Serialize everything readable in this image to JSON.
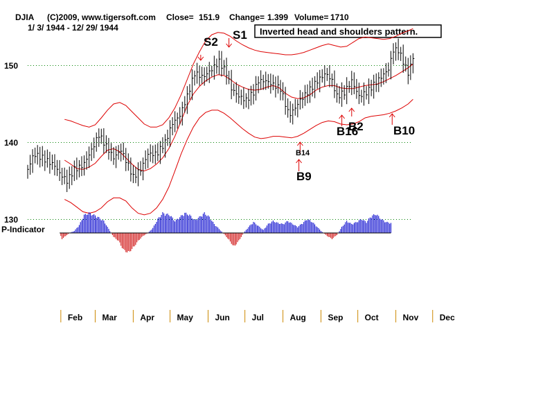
{
  "header": {
    "symbol": "DJIA",
    "copyright": "(C)2009, www.tigersoft.com",
    "close_label": "Close=",
    "close_value": "151.9",
    "change_label": "Change=",
    "change_value": "1.399",
    "volume_label": "Volume=",
    "volume_value": "1710",
    "date_range": "1/ 3/ 1944 - 12/ 29/ 1944"
  },
  "annotation": "Inverted head and shoulders pattern.",
  "indicator_label": "P-Indicator",
  "colors": {
    "price_bars": "#000000",
    "bands": "#dd0000",
    "signal_arrows": "#dd0000",
    "indicator_positive": "#0000cc",
    "indicator_negative": "#cc0000",
    "gridline": "#008000",
    "annotation_border": "#000000"
  },
  "chart_data": {
    "type": "line",
    "subtype": "ohlc-bars-with-bands-and-indicator",
    "title": "DJIA",
    "ylim": [
      127,
      157
    ],
    "yticks": [
      130,
      140,
      150
    ],
    "grid": "dotted horizontal lines at 130, 140 and 150",
    "x_day_range": [
      0,
      300
    ],
    "months": [
      "Feb",
      "Mar",
      "Apr",
      "May",
      "Jun",
      "Jul",
      "Aug",
      "Sep",
      "Oct",
      "Nov",
      "Dec"
    ],
    "month_start_day": [
      27,
      55,
      86,
      116,
      147,
      177,
      208,
      239,
      269,
      300,
      330
    ],
    "price_keypoints": [
      [
        0,
        136.5
      ],
      [
        5,
        138.5
      ],
      [
        12,
        138
      ],
      [
        22,
        137
      ],
      [
        26,
        136
      ],
      [
        32,
        135
      ],
      [
        38,
        136.5
      ],
      [
        45,
        137
      ],
      [
        52,
        139
      ],
      [
        58,
        141
      ],
      [
        64,
        139.5
      ],
      [
        70,
        138
      ],
      [
        76,
        139
      ],
      [
        82,
        137
      ],
      [
        86,
        135.5
      ],
      [
        92,
        136.5
      ],
      [
        98,
        138.5
      ],
      [
        105,
        138.5
      ],
      [
        112,
        140
      ],
      [
        118,
        142.5
      ],
      [
        124,
        143.5
      ],
      [
        130,
        146
      ],
      [
        136,
        149
      ],
      [
        143,
        148.5
      ],
      [
        150,
        149.5
      ],
      [
        156,
        150.5
      ],
      [
        162,
        149
      ],
      [
        166,
        147
      ],
      [
        172,
        146
      ],
      [
        178,
        145.5
      ],
      [
        184,
        146.5
      ],
      [
        188,
        148
      ],
      [
        194,
        148
      ],
      [
        200,
        147.5
      ],
      [
        206,
        147
      ],
      [
        210,
        145
      ],
      [
        213,
        143.5
      ],
      [
        218,
        144.5
      ],
      [
        222,
        145.5
      ],
      [
        228,
        146.5
      ],
      [
        236,
        148
      ],
      [
        243,
        149
      ],
      [
        248,
        148
      ],
      [
        252,
        146
      ],
      [
        258,
        146.5
      ],
      [
        264,
        148
      ],
      [
        270,
        146
      ],
      [
        276,
        146.5
      ],
      [
        282,
        147.5
      ],
      [
        288,
        148.5
      ],
      [
        294,
        149.5
      ],
      [
        298,
        152
      ],
      [
        302,
        152
      ],
      [
        306,
        150.5
      ],
      [
        310,
        149
      ],
      [
        314,
        151
      ]
    ],
    "series": [
      {
        "name": "Upper band",
        "x": [
          0,
          5,
          10,
          15,
          20,
          25,
          30,
          35,
          40,
          45,
          50,
          55,
          60,
          65,
          70,
          75,
          80,
          85,
          90,
          95,
          100,
          105,
          110,
          115,
          120,
          125,
          130,
          135,
          140,
          145,
          150,
          155,
          160,
          165,
          170,
          175,
          180,
          185,
          190,
          195,
          200,
          205,
          210,
          215,
          220,
          225,
          230,
          235,
          240,
          245,
          250,
          255,
          260,
          265,
          270,
          275,
          280,
          285,
          290,
          295,
          300,
          305,
          310,
          314
        ],
        "values": [
          null,
          null,
          null,
          null,
          null,
          null,
          143,
          142.8,
          142.5,
          142.2,
          142,
          142.3,
          143.2,
          144.2,
          145,
          145.2,
          144.8,
          144,
          143.2,
          142.4,
          142,
          142,
          142.3,
          143.2,
          144.5,
          146.2,
          148.2,
          150.2,
          151.8,
          153.2,
          154,
          154.3,
          154.2,
          153.8,
          153.2,
          152.7,
          152.3,
          152,
          151.8,
          151.7,
          151.6,
          151.5,
          151.4,
          151.4,
          151.5,
          151.7,
          152,
          152.3,
          152.6,
          152.8,
          152.6,
          152.4,
          152.5,
          153,
          153.5,
          153.7,
          153.6,
          153.5,
          153.4,
          153.5,
          153.8,
          154.2,
          154.5,
          154.8
        ]
      },
      {
        "name": "Moving average",
        "x": [
          0,
          5,
          10,
          15,
          20,
          25,
          30,
          35,
          40,
          45,
          50,
          55,
          60,
          65,
          70,
          75,
          80,
          85,
          90,
          95,
          100,
          105,
          110,
          115,
          120,
          125,
          130,
          135,
          140,
          145,
          150,
          155,
          160,
          165,
          170,
          175,
          180,
          185,
          190,
          195,
          200,
          205,
          210,
          215,
          220,
          225,
          230,
          235,
          240,
          245,
          250,
          255,
          260,
          265,
          270,
          275,
          280,
          285,
          290,
          295,
          300,
          305,
          310,
          314
        ],
        "values": [
          null,
          null,
          null,
          null,
          null,
          null,
          137.7,
          137.2,
          136.6,
          136.5,
          136.8,
          137.3,
          138.2,
          139,
          139.2,
          138.8,
          138,
          137.2,
          136.5,
          136.3,
          136.6,
          137.2,
          138,
          139.2,
          140.8,
          142.8,
          144.8,
          146.3,
          147.3,
          148,
          148.5,
          148.8,
          148.7,
          148.2,
          147.6,
          147.2,
          146.9,
          146.8,
          146.9,
          147.2,
          147.4,
          147.1,
          146.4,
          145.9,
          145.7,
          145.8,
          146.2,
          146.8,
          147.2,
          147.4,
          147.4,
          147.1,
          147,
          147,
          147.2,
          147.4,
          147.5,
          147.6,
          147.9,
          148.3,
          148.7,
          149.2,
          149.7,
          150.2
        ]
      },
      {
        "name": "Lower band",
        "x": [
          0,
          5,
          10,
          15,
          20,
          25,
          30,
          35,
          40,
          45,
          50,
          55,
          60,
          65,
          70,
          75,
          80,
          85,
          90,
          95,
          100,
          105,
          110,
          115,
          120,
          125,
          130,
          135,
          140,
          145,
          150,
          155,
          160,
          165,
          170,
          175,
          180,
          185,
          190,
          195,
          200,
          205,
          210,
          215,
          220,
          225,
          230,
          235,
          240,
          245,
          250,
          255,
          260,
          265,
          270,
          275,
          280,
          285,
          290,
          295,
          300,
          305,
          310,
          314
        ],
        "values": [
          null,
          null,
          null,
          null,
          null,
          null,
          132.6,
          132.2,
          131.6,
          131,
          130.8,
          131,
          131.5,
          132.3,
          132.8,
          132.8,
          132.4,
          131.5,
          130.8,
          130.6,
          130.8,
          131.5,
          132.6,
          134.2,
          136.3,
          138.5,
          140.4,
          142,
          143.2,
          143.9,
          144.2,
          144.2,
          143.8,
          143.2,
          142.5,
          141.8,
          141.2,
          140.7,
          140.5,
          140.6,
          140.8,
          140.8,
          140.7,
          140.6,
          140.8,
          141.2,
          141.7,
          142.2,
          142.6,
          142.8,
          142.7,
          142.4,
          142.3,
          142.4,
          142.7,
          143.2,
          143.4,
          143.5,
          143.6,
          143.8,
          144.1,
          144.5,
          145,
          145.6
        ]
      }
    ],
    "signals": [
      {
        "label": "S2",
        "day": 141,
        "type": "sell",
        "size": "large"
      },
      {
        "label": "S1",
        "day": 164,
        "type": "sell",
        "size": "large"
      },
      {
        "label": "B14",
        "day": 222,
        "type": "buy",
        "size": "small"
      },
      {
        "label": "B9",
        "day": 221,
        "type": "buy",
        "size": "large"
      },
      {
        "label": "B16",
        "day": 256,
        "type": "buy",
        "size": "large"
      },
      {
        "label": "B2",
        "day": 264,
        "type": "buy",
        "size": "large"
      },
      {
        "label": "B10",
        "day": 297,
        "type": "buy",
        "size": "large"
      }
    ],
    "indicator": {
      "name": "P-Indicator",
      "keypoints": [
        [
          26,
          0
        ],
        [
          28,
          -0.3
        ],
        [
          31,
          -0.15
        ],
        [
          34,
          0
        ],
        [
          38,
          0.1
        ],
        [
          42,
          0.4
        ],
        [
          46,
          0.9
        ],
        [
          50,
          1.0
        ],
        [
          56,
          0.85
        ],
        [
          62,
          0.6
        ],
        [
          66,
          0.2
        ],
        [
          70,
          -0.2
        ],
        [
          74,
          -0.4
        ],
        [
          78,
          -0.85
        ],
        [
          82,
          -1.0
        ],
        [
          86,
          -0.75
        ],
        [
          90,
          -0.4
        ],
        [
          94,
          -0.15
        ],
        [
          98,
          0
        ],
        [
          102,
          0.25
        ],
        [
          106,
          0.7
        ],
        [
          110,
          1.0
        ],
        [
          116,
          0.9
        ],
        [
          120,
          0.6
        ],
        [
          124,
          0.8
        ],
        [
          128,
          1.0
        ],
        [
          132,
          0.9
        ],
        [
          136,
          0.65
        ],
        [
          140,
          0.8
        ],
        [
          144,
          1.0
        ],
        [
          148,
          0.8
        ],
        [
          152,
          0.45
        ],
        [
          156,
          0.2
        ],
        [
          160,
          -0.05
        ],
        [
          164,
          -0.35
        ],
        [
          168,
          -0.7
        ],
        [
          172,
          -0.4
        ],
        [
          176,
          0
        ],
        [
          180,
          0.3
        ],
        [
          184,
          0.55
        ],
        [
          188,
          0.35
        ],
        [
          192,
          0.15
        ],
        [
          196,
          0.45
        ],
        [
          200,
          0.6
        ],
        [
          204,
          0.5
        ],
        [
          208,
          0.45
        ],
        [
          212,
          0.6
        ],
        [
          216,
          0.45
        ],
        [
          220,
          0.3
        ],
        [
          224,
          0.5
        ],
        [
          228,
          0.7
        ],
        [
          232,
          0.55
        ],
        [
          236,
          0.3
        ],
        [
          240,
          0.05
        ],
        [
          244,
          -0.15
        ],
        [
          248,
          -0.3
        ],
        [
          252,
          -0.1
        ],
        [
          256,
          0.3
        ],
        [
          260,
          0.6
        ],
        [
          264,
          0.45
        ],
        [
          268,
          0.55
        ],
        [
          272,
          0.7
        ],
        [
          276,
          0.55
        ],
        [
          280,
          0.85
        ],
        [
          284,
          0.95
        ],
        [
          288,
          0.7
        ],
        [
          292,
          0.55
        ],
        [
          296,
          0.5
        ]
      ]
    }
  }
}
